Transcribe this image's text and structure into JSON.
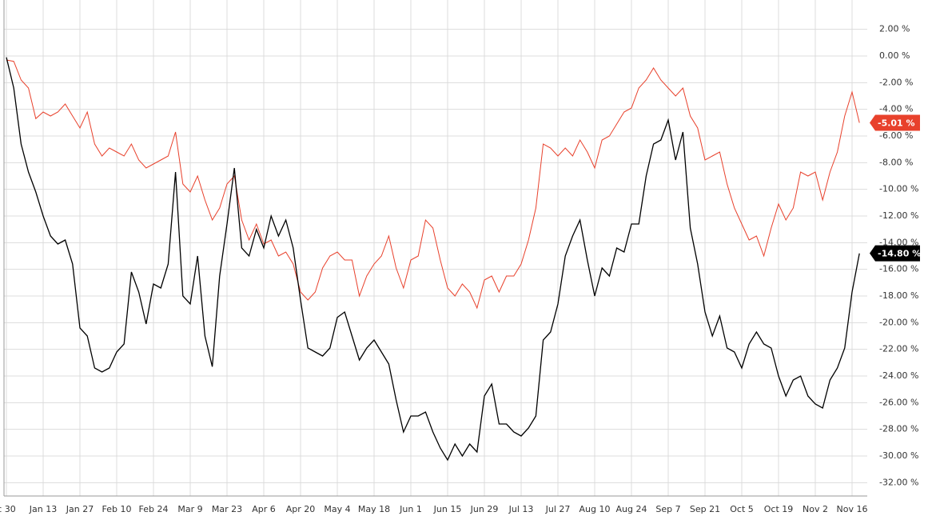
{
  "chart_data": {
    "type": "line",
    "categories": [
      "c 30",
      null,
      null,
      null,
      null,
      "Jan 13",
      null,
      null,
      null,
      null,
      "Jan 27",
      null,
      null,
      null,
      null,
      "Feb 10",
      null,
      null,
      null,
      null,
      "Feb 24",
      null,
      null,
      null,
      null,
      "Mar 9",
      null,
      null,
      null,
      null,
      "Mar 23",
      null,
      null,
      null,
      null,
      "Apr 6",
      null,
      null,
      null,
      null,
      "Apr 20",
      null,
      null,
      null,
      null,
      "May 4",
      null,
      null,
      null,
      null,
      "May 18",
      null,
      null,
      null,
      null,
      "Jun 1",
      null,
      null,
      null,
      null,
      "Jun 15",
      null,
      null,
      null,
      null,
      "Jun 29",
      null,
      null,
      null,
      null,
      "Jul 13",
      null,
      null,
      null,
      null,
      "Jul 27",
      null,
      null,
      null,
      null,
      "Aug 10",
      null,
      null,
      null,
      null,
      "Aug 24",
      null,
      null,
      null,
      null,
      "Sep 7",
      null,
      null,
      null,
      null,
      "Sep 21",
      null,
      null,
      null,
      null,
      "Oct 5",
      null,
      null,
      null,
      null,
      "Oct 19",
      null,
      null,
      null,
      null,
      "Nov 2",
      null,
      null,
      null,
      null,
      "Nov 16",
      null
    ],
    "series": [
      {
        "color": "#e8412c",
        "values": [
          -0.3,
          -0.4,
          -1.8,
          -2.4,
          -4.7,
          -4.2,
          -4.5,
          -4.2,
          -3.6,
          -4.5,
          -5.4,
          -4.2,
          -6.6,
          -7.5,
          -6.9,
          -7.2,
          -7.5,
          -6.6,
          -7.8,
          -8.4,
          -8.1,
          -7.8,
          -7.5,
          -5.7,
          -9.6,
          -10.2,
          -9.0,
          -10.8,
          -12.3,
          -11.4,
          -9.6,
          -9.0,
          -12.3,
          -13.8,
          -12.6,
          -14.1,
          -13.8,
          -15.0,
          -14.7,
          -15.6,
          -17.7,
          -18.3,
          -17.7,
          -15.9,
          -15.0,
          -14.7,
          -15.3,
          -15.3,
          -18.0,
          -16.5,
          -15.6,
          -15.0,
          -13.5,
          -15.9,
          -17.4,
          -15.3,
          -15.0,
          -12.3,
          -12.9,
          -15.3,
          -17.4,
          -18.0,
          -17.1,
          -17.7,
          -18.9,
          -16.8,
          -16.5,
          -17.7,
          -16.5,
          -16.5,
          -15.6,
          -13.8,
          -11.4,
          -6.6,
          -6.9,
          -7.5,
          -6.9,
          -7.5,
          -6.3,
          -7.2,
          -8.4,
          -6.3,
          -6.0,
          -5.1,
          -4.2,
          -3.9,
          -2.4,
          -1.8,
          -0.9,
          -1.8,
          -2.4,
          -3.0,
          -2.4,
          -4.5,
          -5.4,
          -7.8,
          -7.5,
          -7.2,
          -9.6,
          -11.4,
          -12.6,
          -13.8,
          -13.5,
          -15.0,
          -12.9,
          -11.1,
          -12.3,
          -11.4,
          -8.7,
          -9.0,
          -8.7,
          -10.8,
          -8.7,
          -7.2,
          -4.5,
          -2.7,
          -5.01
        ],
        "value_labels": [
          null,
          null,
          null,
          null,
          null,
          null,
          null,
          null,
          null,
          null,
          null,
          null,
          null,
          null,
          null,
          null,
          null,
          null,
          null,
          null,
          null,
          null,
          null,
          null,
          null,
          null,
          null,
          null,
          null,
          null,
          null,
          null,
          null,
          null,
          null,
          null,
          null,
          null,
          null,
          null,
          null,
          null,
          null,
          null,
          null,
          null,
          null,
          null,
          null,
          null,
          null,
          null,
          null,
          null,
          null,
          null,
          null,
          null,
          null,
          null,
          null,
          null,
          null,
          null,
          null,
          null,
          null,
          null,
          null,
          null,
          null,
          null,
          null,
          null,
          null,
          null,
          null,
          null,
          null,
          null,
          null,
          null,
          null,
          null,
          null,
          null,
          null,
          null,
          null,
          null,
          null,
          null,
          null,
          null,
          null,
          null,
          null,
          null,
          null,
          null,
          null,
          null,
          null,
          null,
          null,
          null,
          null,
          null,
          null,
          null,
          null,
          null,
          null,
          null,
          null,
          null,
          "-5.01 %"
        ]
      },
      {
        "color": "#000000",
        "values": [
          -0.1,
          -2.4,
          -6.6,
          -8.7,
          -10.2,
          -12.0,
          -13.5,
          -14.1,
          -13.8,
          -15.6,
          -20.4,
          -21.0,
          -23.4,
          -23.7,
          -23.4,
          -22.2,
          -21.6,
          -16.2,
          -17.7,
          -20.1,
          -17.1,
          -17.4,
          -15.6,
          -8.7,
          -18.0,
          -18.6,
          -15.0,
          -21.0,
          -23.3,
          -16.5,
          -12.6,
          -8.4,
          -14.4,
          -15.0,
          -13.0,
          -14.4,
          -12.0,
          -13.5,
          -12.3,
          -14.4,
          -18.3,
          -21.9,
          -22.2,
          -22.5,
          -21.9,
          -19.6,
          -19.2,
          -21.0,
          -22.8,
          -21.9,
          -21.3,
          -22.2,
          -23.1,
          -25.8,
          -28.2,
          -27.0,
          -27.0,
          -26.7,
          -28.2,
          -29.4,
          -30.3,
          -29.1,
          -30.0,
          -29.1,
          -29.7,
          -25.5,
          -24.6,
          -27.6,
          -27.6,
          -28.2,
          -28.5,
          -27.9,
          -27.0,
          -21.3,
          -20.7,
          -18.6,
          -15.0,
          -13.5,
          -12.3,
          -15.3,
          -18.0,
          -15.9,
          -16.5,
          -14.4,
          -14.7,
          -12.6,
          -12.6,
          -9.0,
          -6.6,
          -6.3,
          -4.8,
          -7.8,
          -5.7,
          -12.9,
          -15.6,
          -19.2,
          -21.0,
          -19.5,
          -21.9,
          -22.2,
          -23.4,
          -21.6,
          -20.7,
          -21.6,
          -21.9,
          -24.0,
          -25.5,
          -24.3,
          -24.0,
          -25.5,
          -26.1,
          -26.4,
          -24.3,
          -23.4,
          -21.9,
          -17.7,
          -14.8
        ],
        "value_labels": [
          null,
          null,
          null,
          null,
          null,
          null,
          null,
          null,
          null,
          null,
          null,
          null,
          null,
          null,
          null,
          null,
          null,
          null,
          null,
          null,
          null,
          null,
          null,
          null,
          null,
          null,
          null,
          null,
          null,
          null,
          null,
          null,
          null,
          null,
          null,
          null,
          null,
          null,
          null,
          null,
          null,
          null,
          null,
          null,
          null,
          null,
          null,
          null,
          null,
          null,
          null,
          null,
          null,
          null,
          null,
          null,
          null,
          null,
          null,
          null,
          null,
          null,
          null,
          null,
          null,
          null,
          null,
          null,
          null,
          null,
          null,
          null,
          null,
          null,
          null,
          null,
          null,
          null,
          null,
          null,
          null,
          null,
          null,
          null,
          null,
          null,
          null,
          null,
          null,
          null,
          null,
          null,
          null,
          null,
          null,
          null,
          null,
          null,
          null,
          null,
          null,
          null,
          null,
          null,
          null,
          null,
          null,
          null,
          null,
          null,
          null,
          null,
          null,
          null,
          null,
          null,
          "-14.80 %"
        ]
      }
    ],
    "ylim": [
      -33,
      4.2
    ],
    "yticks": [
      {
        "value": 2,
        "label": "2.00 %"
      },
      {
        "value": 0,
        "label": "0.00 %"
      },
      {
        "value": -2,
        "label": "-2.00 %"
      },
      {
        "value": -4,
        "label": "-4.00 %"
      },
      {
        "value": -6,
        "label": "-6.00 %"
      },
      {
        "value": -8,
        "label": "-8.00 %"
      },
      {
        "value": -10,
        "label": "-10.00 %"
      },
      {
        "value": -12,
        "label": "-12.00 %"
      },
      {
        "value": -14,
        "label": "-14.00 %"
      },
      {
        "value": -16,
        "label": "-16.00 %"
      },
      {
        "value": -18,
        "label": "-18.00 %"
      },
      {
        "value": -20,
        "label": "-20.00 %"
      },
      {
        "value": -22,
        "label": "-22.00 %"
      },
      {
        "value": -24,
        "label": "-24.00 %"
      },
      {
        "value": -26,
        "label": "-26.00 %"
      },
      {
        "value": -28,
        "label": "-28.00 %"
      },
      {
        "value": -30,
        "label": "-30.00 %"
      },
      {
        "value": -32,
        "label": "-32.00 %"
      }
    ],
    "grid": true
  }
}
